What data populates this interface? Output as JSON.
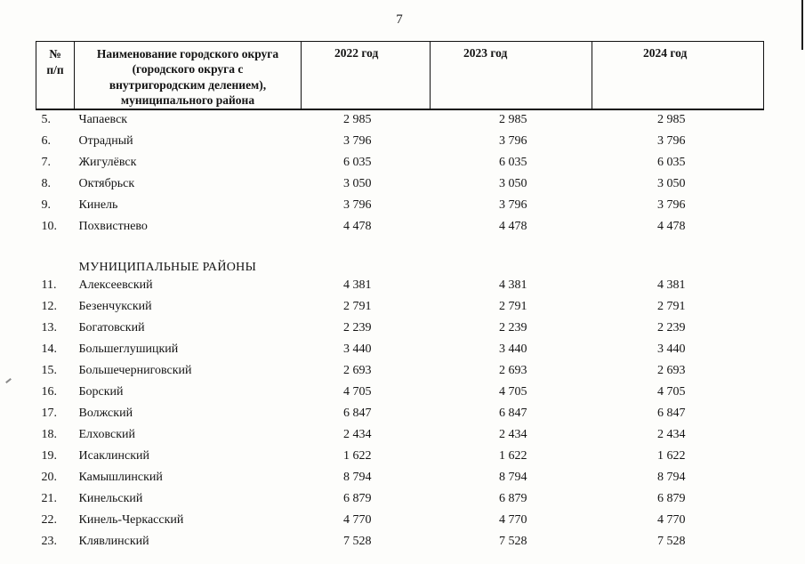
{
  "page": {
    "number": "7"
  },
  "table": {
    "headers": {
      "num": "№\nп/п",
      "name": "Наименование городского округа\n(городского округа с\nвнутригородским делением),\nмуниципального района",
      "y2022": "2022 год",
      "y2023": "2023 год",
      "y2024": "2024 год"
    },
    "rows": [
      {
        "num": "5.",
        "name": "Чапаевск",
        "v": [
          "2 985",
          "2 985",
          "2 985"
        ]
      },
      {
        "num": "6.",
        "name": "Отрадный",
        "v": [
          "3 796",
          "3 796",
          "3 796"
        ]
      },
      {
        "num": "7.",
        "name": "Жигулёвск",
        "v": [
          "6 035",
          "6 035",
          "6 035"
        ]
      },
      {
        "num": "8.",
        "name": "Октябрьск",
        "v": [
          "3 050",
          "3 050",
          "3 050"
        ]
      },
      {
        "num": "9.",
        "name": "Кинель",
        "v": [
          "3 796",
          "3 796",
          "3 796"
        ]
      },
      {
        "num": "10.",
        "name": "Похвистнево",
        "v": [
          "4 478",
          "4 478",
          "4 478"
        ]
      },
      {
        "section": "МУНИЦИПАЛЬНЫЕ РАЙОНЫ"
      },
      {
        "num": "11.",
        "name": "Алексеевский",
        "v": [
          "4 381",
          "4 381",
          "4 381"
        ]
      },
      {
        "num": "12.",
        "name": "Безенчукский",
        "v": [
          "2 791",
          "2 791",
          "2 791"
        ]
      },
      {
        "num": "13.",
        "name": "Богатовский",
        "v": [
          "2 239",
          "2 239",
          "2 239"
        ]
      },
      {
        "num": "14.",
        "name": "Большеглушицкий",
        "v": [
          "3 440",
          "3 440",
          "3 440"
        ]
      },
      {
        "num": "15.",
        "name": "Большечерниговский",
        "v": [
          "2 693",
          "2 693",
          "2 693"
        ]
      },
      {
        "num": "16.",
        "name": "Борский",
        "v": [
          "4 705",
          "4 705",
          "4 705"
        ]
      },
      {
        "num": "17.",
        "name": "Волжский",
        "v": [
          "6 847",
          "6 847",
          "6 847"
        ]
      },
      {
        "num": "18.",
        "name": "Елховский",
        "v": [
          "2 434",
          "2 434",
          "2 434"
        ]
      },
      {
        "num": "19.",
        "name": "Исаклинский",
        "v": [
          "1 622",
          "1 622",
          "1 622"
        ]
      },
      {
        "num": "20.",
        "name": "Камышлинский",
        "v": [
          "8 794",
          "8 794",
          "8 794"
        ]
      },
      {
        "num": "21.",
        "name": "Кинельский",
        "v": [
          "6 879",
          "6 879",
          "6 879"
        ]
      },
      {
        "num": "22.",
        "name": "Кинель-Черкасский",
        "v": [
          "4 770",
          "4 770",
          "4 770"
        ]
      },
      {
        "num": "23.",
        "name": "Клявлинский",
        "v": [
          "7 528",
          "7 528",
          "7 528"
        ]
      }
    ]
  }
}
